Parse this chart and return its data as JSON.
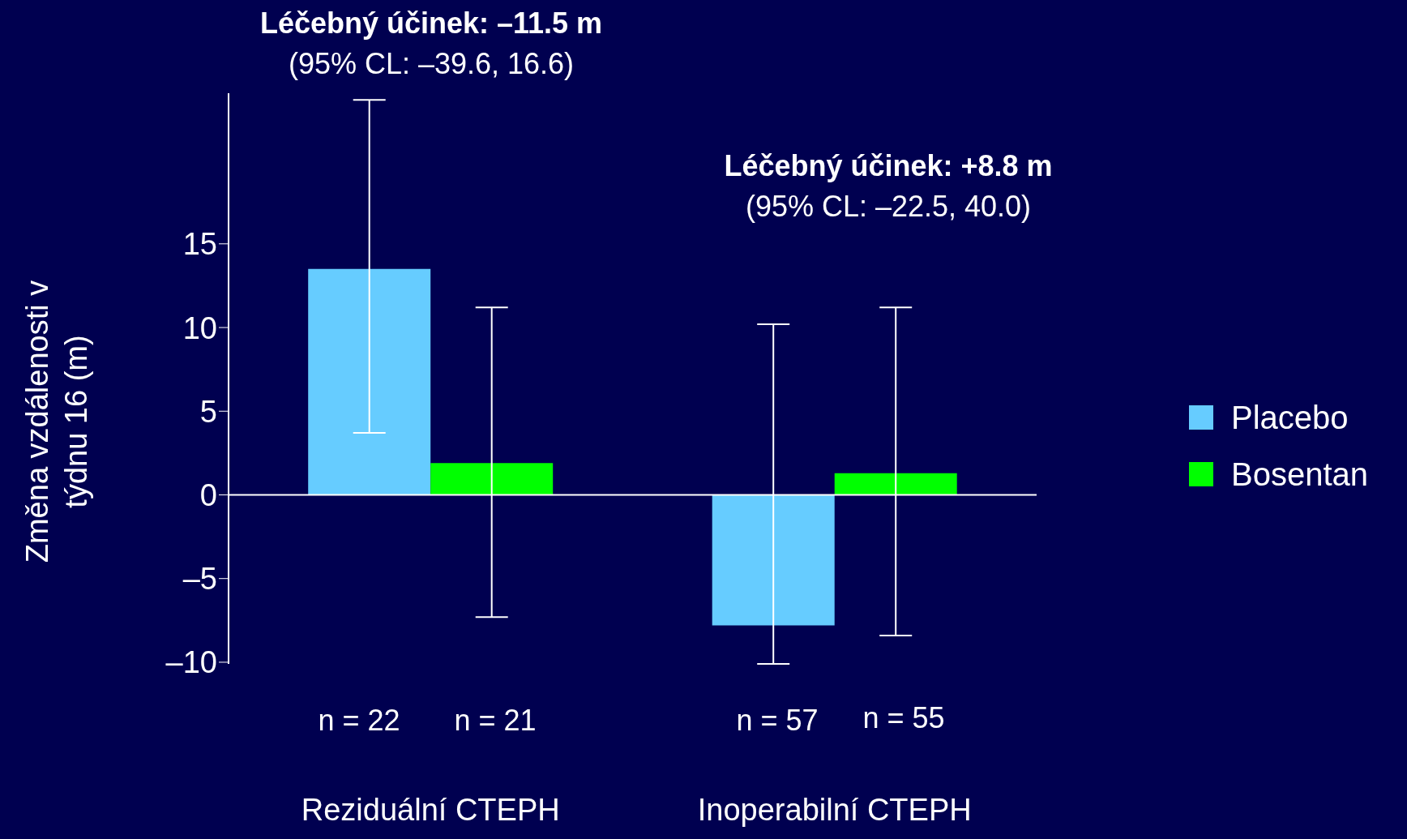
{
  "chart_data": {
    "type": "bar",
    "ylabel": "Změna vzdálenosti v týdnu 16 (m)",
    "categories": [
      "Reziduální CTEPH",
      "Inoperabilní CTEPH"
    ],
    "series": [
      {
        "name": "Placebo",
        "color": "#66ccff",
        "values": [
          13.5,
          -7.8
        ],
        "errors": [
          [
            3.7,
            23.6
          ],
          [
            -10.1,
            10.2
          ]
        ]
      },
      {
        "name": "Bosentan",
        "color": "#00ff00",
        "values": [
          1.9,
          1.3
        ],
        "errors": [
          [
            -7.3,
            11.2
          ],
          [
            -8.4,
            11.2
          ]
        ]
      }
    ],
    "ylim": [
      -10.1,
      24
    ],
    "yticks": [
      {
        "value": -10,
        "label": "–10"
      },
      {
        "value": -5,
        "label": "–5"
      },
      0,
      5,
      10,
      15
    ],
    "legend": "right",
    "annotations": [
      "Léčebný účinek: –11.5 m",
      "(95% CL: –39.6, 16.6)",
      "Léčebný účinek: +8.8 m",
      "(95% CL: –22.5, 40.0)",
      "n = 22",
      "n = 21",
      "n = 57",
      "n = 55"
    ]
  }
}
